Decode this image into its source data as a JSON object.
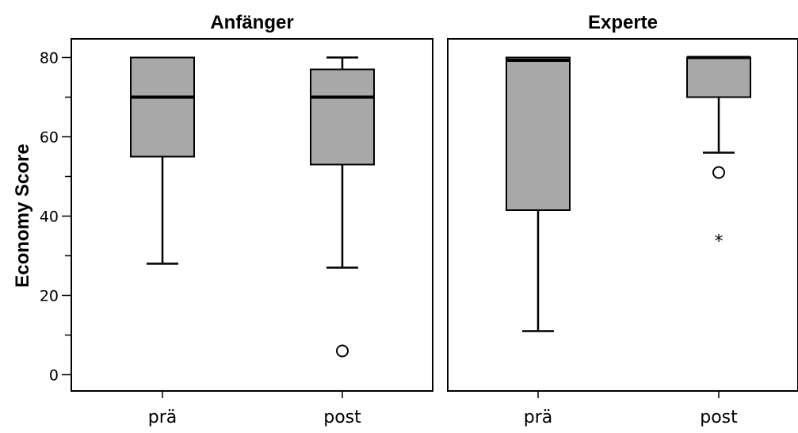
{
  "chart_data": {
    "type": "boxplot",
    "ylabel": "Economy Score",
    "ylim": [
      -4,
      85
    ],
    "yticks": [
      0,
      20,
      40,
      60,
      80
    ],
    "grid": false,
    "box_color": "#a8a8a8",
    "panels": [
      {
        "title": "Anfänger",
        "categories": [
          "prä",
          "post"
        ],
        "boxes": [
          {
            "category": "prä",
            "whisker_low": 28,
            "q1": 55,
            "median": 70,
            "q3": 80,
            "whisker_high": 80,
            "outliers": [],
            "extremes": []
          },
          {
            "category": "post",
            "whisker_low": 27,
            "q1": 53,
            "median": 70,
            "q3": 77,
            "whisker_high": 80,
            "outliers": [
              6
            ],
            "extremes": []
          }
        ]
      },
      {
        "title": "Experte",
        "categories": [
          "prä",
          "post"
        ],
        "boxes": [
          {
            "category": "prä",
            "whisker_low": 11,
            "q1": 41.5,
            "median": 79.3,
            "q3": 80,
            "whisker_high": 80,
            "outliers": [],
            "extremes": []
          },
          {
            "category": "post",
            "whisker_low": 56,
            "q1": 70,
            "median": 80,
            "q3": 80,
            "whisker_high": 80,
            "outliers": [
              51
            ],
            "extremes": [
              34
            ]
          }
        ]
      }
    ]
  }
}
